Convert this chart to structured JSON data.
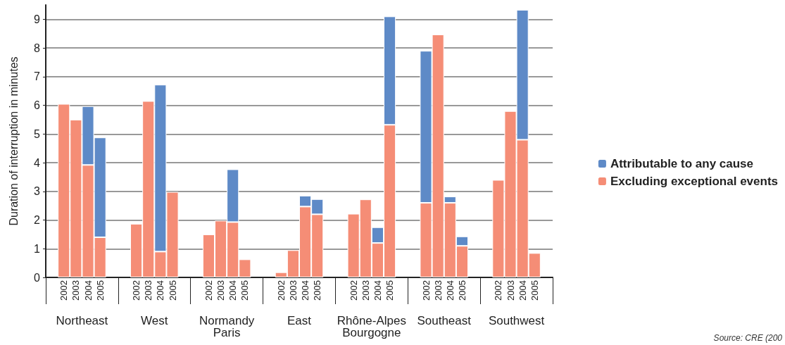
{
  "chart_data": {
    "type": "bar",
    "stacked": true,
    "ylabel": "Duration of interruption in minutes",
    "categories": [
      null,
      "2002",
      "2003",
      "2004",
      "2005",
      null,
      null,
      "2002",
      "2003",
      "2004",
      "2005",
      null,
      null,
      "2002",
      "2003",
      "2004",
      "2005",
      null,
      null,
      "2002",
      "2003",
      "2004",
      "2005",
      null,
      null,
      "2002",
      "2003",
      "2004",
      "2005",
      null,
      null,
      "2002",
      "2003",
      "2004",
      "2005",
      null,
      null,
      "2002",
      "2003",
      "2004",
      "2005",
      null
    ],
    "series": [
      {
        "name": "Excluding exceptional events",
        "color": "#f58d76",
        "values": [
          null,
          6.05,
          5.5,
          3.92,
          1.4,
          null,
          null,
          1.87,
          6.15,
          0.9,
          2.98,
          null,
          null,
          1.5,
          1.98,
          1.93,
          0.63,
          null,
          null,
          0.18,
          0.95,
          2.47,
          2.2,
          null,
          null,
          2.22,
          2.72,
          1.2,
          5.32,
          null,
          null,
          2.6,
          8.47,
          2.6,
          1.1,
          null,
          null,
          3.4,
          5.8,
          4.8,
          0.85,
          null
        ]
      },
      {
        "name": "Attributable to any cause",
        "color": "#5e8ac7",
        "values": [
          null,
          null,
          null,
          2.05,
          3.48,
          null,
          null,
          null,
          null,
          5.82,
          null,
          null,
          null,
          null,
          null,
          1.84,
          null,
          null,
          null,
          null,
          null,
          0.38,
          0.53,
          null,
          null,
          null,
          null,
          0.55,
          3.78,
          null,
          null,
          5.3,
          null,
          0.22,
          0.33,
          null,
          null,
          null,
          null,
          4.53,
          null,
          null
        ]
      }
    ],
    "ylim": [
      0,
      9.5
    ],
    "yticks": [
      0,
      1,
      2,
      3,
      4,
      5,
      6,
      7,
      8,
      9
    ],
    "grid": "y",
    "legend": "right",
    "annotations": [
      "Northeast",
      "West",
      "Normandy\nParis",
      "East",
      "Rhône-Alpes\nBourgogne",
      "Southeast",
      "Southwest",
      "Source: CRE (200"
    ]
  }
}
